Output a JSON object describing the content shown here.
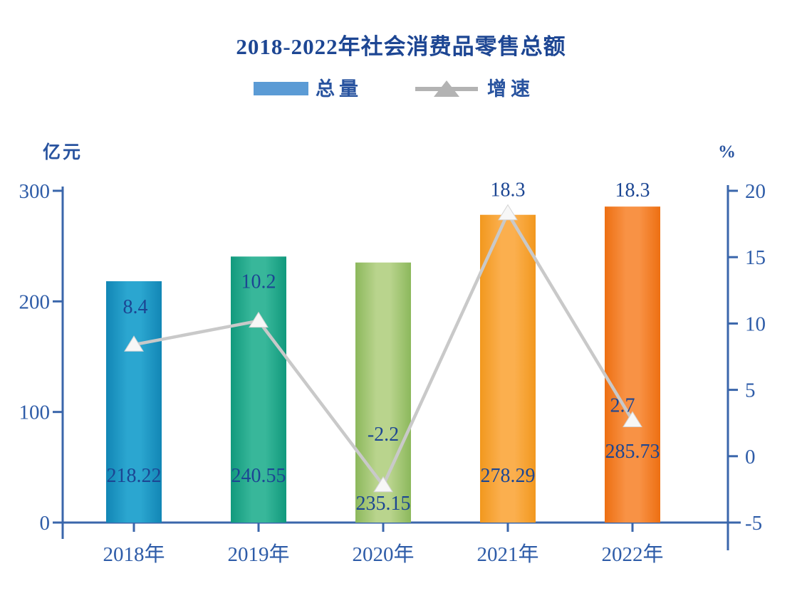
{
  "chart_data": {
    "type": "bar",
    "subtype": "bar-line-combo",
    "title": "2018-2022年社会消费品零售总额",
    "legend_position": "top",
    "grid": false,
    "legend": [
      {
        "label": "总量",
        "marker": "bar-swatch",
        "color": "#5b9bd5"
      },
      {
        "label": "增速",
        "marker": "line-triangle",
        "color": "#b3b3b3",
        "line_color": "#b3b3b3"
      }
    ],
    "left_axis": {
      "unit": "亿元",
      "min": 0,
      "max": 300,
      "ticks": [
        "0",
        "100",
        "200",
        "300"
      ],
      "tick_values": [
        0,
        100,
        200,
        300
      ]
    },
    "right_axis": {
      "unit": "%",
      "min": -5,
      "max": 20,
      "ticks": [
        "-5",
        "0",
        "5",
        "10",
        "15",
        "20"
      ],
      "tick_values": [
        -5,
        0,
        5,
        10,
        15,
        20
      ]
    },
    "categories": [
      "2018年",
      "2019年",
      "2020年",
      "2021年",
      "2022年"
    ],
    "series": [
      {
        "name": "总量",
        "type": "bar",
        "axis": "left",
        "unit": "亿元",
        "values": [
          218.22,
          240.55,
          235.15,
          278.29,
          285.73
        ],
        "labels": [
          "218.22",
          "240.55",
          "235.15",
          "278.29",
          "285.73"
        ]
      },
      {
        "name": "增速",
        "type": "line",
        "axis": "right",
        "unit": "%",
        "values": [
          8.4,
          10.2,
          -2.2,
          18.3,
          2.7
        ],
        "labels": [
          "8.4",
          "10.2",
          "-2.2",
          "18.3",
          "2.7"
        ]
      }
    ],
    "extra_labels": [
      {
        "text": "18.3",
        "category_index": 4
      }
    ],
    "bar_colors": [
      {
        "edge": "#1286b5",
        "mid": "#2ba6d0"
      },
      {
        "edge": "#11997d",
        "mid": "#38b79a"
      },
      {
        "edge": "#8cb85c",
        "mid": "#b9d48d"
      },
      {
        "edge": "#f2981e",
        "mid": "#fbaf4e"
      },
      {
        "edge": "#ed6f12",
        "mid": "#f89245"
      }
    ],
    "line_color": "#c9c9c9",
    "marker_fill": "#f7f7f7",
    "marker_stroke": "#d4d4d4",
    "axis_color": "#3a66ab",
    "tick_text_color": "#2e5ca8",
    "value_text_color": "#1c4693"
  }
}
